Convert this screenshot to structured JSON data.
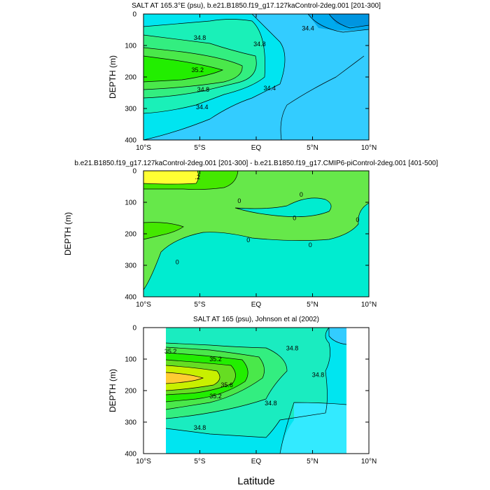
{
  "chart_data": [
    {
      "type": "filled-contour",
      "title": "SALT AT 165.3°E (psu), b.e21.B1850.f19_g17.127kaControl-2deg.001 [201-300]",
      "ylabel": "DEPTH (m)",
      "x_ticks": [
        "10°S",
        "5°S",
        "EQ",
        "5°N",
        "10°N"
      ],
      "y_ticks": [
        "0",
        "100",
        "200",
        "300",
        "400"
      ],
      "xlim": [
        -10,
        10
      ],
      "ylim": [
        400,
        0
      ],
      "contour_labels": [
        {
          "text": "34.8",
          "lat": -5.0,
          "depth": 75
        },
        {
          "text": "35.2",
          "lat": -5.2,
          "depth": 178
        },
        {
          "text": "34.8",
          "lat": 0.3,
          "depth": 95
        },
        {
          "text": "34.8",
          "lat": -4.7,
          "depth": 240
        },
        {
          "text": "34.4",
          "lat": -4.8,
          "depth": 295
        },
        {
          "text": "34.4",
          "lat": 1.2,
          "depth": 235
        },
        {
          "text": "34.4",
          "lat": 4.6,
          "depth": 45
        }
      ]
    },
    {
      "type": "filled-contour",
      "title": "b.e21.B1850.f19_g17.127kaControl-2deg.001 [201-300] - b.e21.B1850.f19_g17.CMIP6-piControl-2deg.001 [401-500]",
      "ylabel": "DEPTH (m)",
      "x_ticks": [
        "10°S",
        "5°S",
        "EQ",
        "5°N",
        "10°N"
      ],
      "y_ticks": [
        "0",
        "100",
        "200",
        "300",
        "400"
      ],
      "xlim": [
        -10,
        10
      ],
      "ylim": [
        400,
        0
      ],
      "contour_labels": [
        {
          "text": ".2",
          "lat": -5.2,
          "depth": 20
        },
        {
          "text": "0",
          "lat": -1.5,
          "depth": 95
        },
        {
          "text": "0",
          "lat": 3.4,
          "depth": 150
        },
        {
          "text": "0",
          "lat": 4.0,
          "depth": 75
        },
        {
          "text": "0",
          "lat": -0.7,
          "depth": 220
        },
        {
          "text": "0",
          "lat": 4.8,
          "depth": 235
        },
        {
          "text": "0",
          "lat": -7.0,
          "depth": 290
        },
        {
          "text": "0",
          "lat": 9.0,
          "depth": 155
        }
      ]
    },
    {
      "type": "filled-contour",
      "title": "SALT AT 165 (psu), Johnson et al (2002)",
      "ylabel": "DEPTH (m)",
      "xlabel": "Latitude",
      "x_ticks": [
        "10°S",
        "5°S",
        "EQ",
        "5°N",
        "10°N"
      ],
      "y_ticks": [
        "0",
        "100",
        "200",
        "300",
        "400"
      ],
      "xlim": [
        -10,
        10
      ],
      "ylim": [
        400,
        0
      ],
      "data_range_lat": [
        -8,
        8
      ],
      "contour_labels": [
        {
          "text": "35.2",
          "lat": -7.6,
          "depth": 75
        },
        {
          "text": "35.2",
          "lat": -3.6,
          "depth": 100
        },
        {
          "text": "34.8",
          "lat": 3.2,
          "depth": 65
        },
        {
          "text": "35.6",
          "lat": -2.6,
          "depth": 182
        },
        {
          "text": "35.2",
          "lat": -3.6,
          "depth": 218
        },
        {
          "text": "34.8",
          "lat": 1.3,
          "depth": 240
        },
        {
          "text": "34.8",
          "lat": 5.5,
          "depth": 150
        },
        {
          "text": "34.8",
          "lat": -5.0,
          "depth": 318
        }
      ]
    }
  ]
}
